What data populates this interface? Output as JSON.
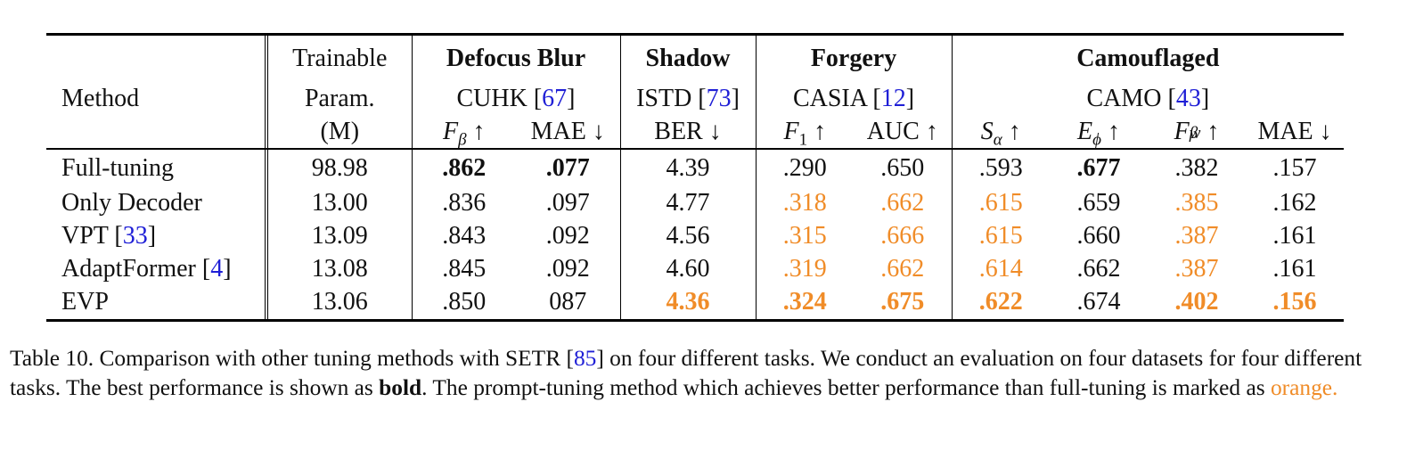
{
  "header": {
    "method": "Method",
    "trainable_line1": "Trainable",
    "trainable_line2": "Param.",
    "trainable_line3": "(M)",
    "groups": [
      {
        "task": "Defocus Blur",
        "dataset": "CUHK",
        "ref": "67"
      },
      {
        "task": "Shadow",
        "dataset": "ISTD",
        "ref": "73"
      },
      {
        "task": "Forgery",
        "dataset": "CASIA",
        "ref": "12"
      },
      {
        "task": "Camouflaged",
        "dataset": "CAMO",
        "ref": "43"
      }
    ],
    "metrics": {
      "f_beta": {
        "sym": "F",
        "sub": "β",
        "arrow": "↑"
      },
      "mae1": "MAE ↓",
      "ber": "BER ↓",
      "f1": {
        "sym": "F",
        "sub": "1",
        "arrow": "↑"
      },
      "auc": "AUC ↑",
      "s_alpha": {
        "sym": "S",
        "sub": "α",
        "arrow": "↑"
      },
      "e_phi": {
        "sym": "E",
        "sub": "ϕ",
        "arrow": "↑"
      },
      "fw_beta": {
        "sym": "F",
        "sup": "w",
        "sub": "β",
        "arrow": "↑"
      },
      "mae2": "MAE ↓"
    }
  },
  "rows": [
    {
      "name": "Full-tuning",
      "ref": "",
      "cells": [
        "98.98",
        ".862",
        ".077",
        "4.39",
        ".290",
        ".650",
        ".593",
        ".677",
        ".382",
        ".157"
      ]
    },
    {
      "name": "Only Decoder",
      "ref": "",
      "cells": [
        "13.00",
        ".836",
        ".097",
        "4.77",
        ".318",
        ".662",
        ".615",
        ".659",
        ".385",
        ".162"
      ]
    },
    {
      "name": "VPT",
      "ref": "33",
      "cells": [
        "13.09",
        ".843",
        ".092",
        "4.56",
        ".315",
        ".666",
        ".615",
        ".660",
        ".387",
        ".161"
      ]
    },
    {
      "name": "AdaptFormer",
      "ref": "4",
      "cells": [
        "13.08",
        ".845",
        ".092",
        "4.60",
        ".319",
        ".662",
        ".614",
        ".662",
        ".387",
        ".161"
      ]
    },
    {
      "name": "EVP",
      "ref": "",
      "cells": [
        "13.06",
        ".850",
        "087",
        "4.36",
        ".324",
        ".675",
        ".622",
        ".674",
        ".402",
        ".156"
      ]
    }
  ],
  "styles": [
    [
      "",
      "b",
      "b",
      "",
      "",
      "",
      "",
      "b",
      "",
      ""
    ],
    [
      "",
      "",
      "",
      "",
      "o",
      "o",
      "o",
      "",
      "o",
      ""
    ],
    [
      "",
      "",
      "",
      "",
      "o",
      "o",
      "o",
      "",
      "o",
      ""
    ],
    [
      "",
      "",
      "",
      "",
      "o",
      "o",
      "o",
      "",
      "o",
      ""
    ],
    [
      "",
      "",
      "",
      "bo",
      "bo",
      "bo",
      "bo",
      "",
      "bo",
      "bo"
    ]
  ],
  "colors": {
    "orange": "#f08c28",
    "ref_blue": "#1f1fd6"
  },
  "caption": {
    "p1": "Table 10. Comparison with other tuning methods with SETR [",
    "ref": "85",
    "p2": "] on four different tasks. We conduct an evaluation on four datasets for four different tasks. The best performance is shown as ",
    "bold": "bold",
    "p3": ". The prompt-tuning method which achieves better performance than full-tuning is marked as ",
    "orange": "orange."
  }
}
